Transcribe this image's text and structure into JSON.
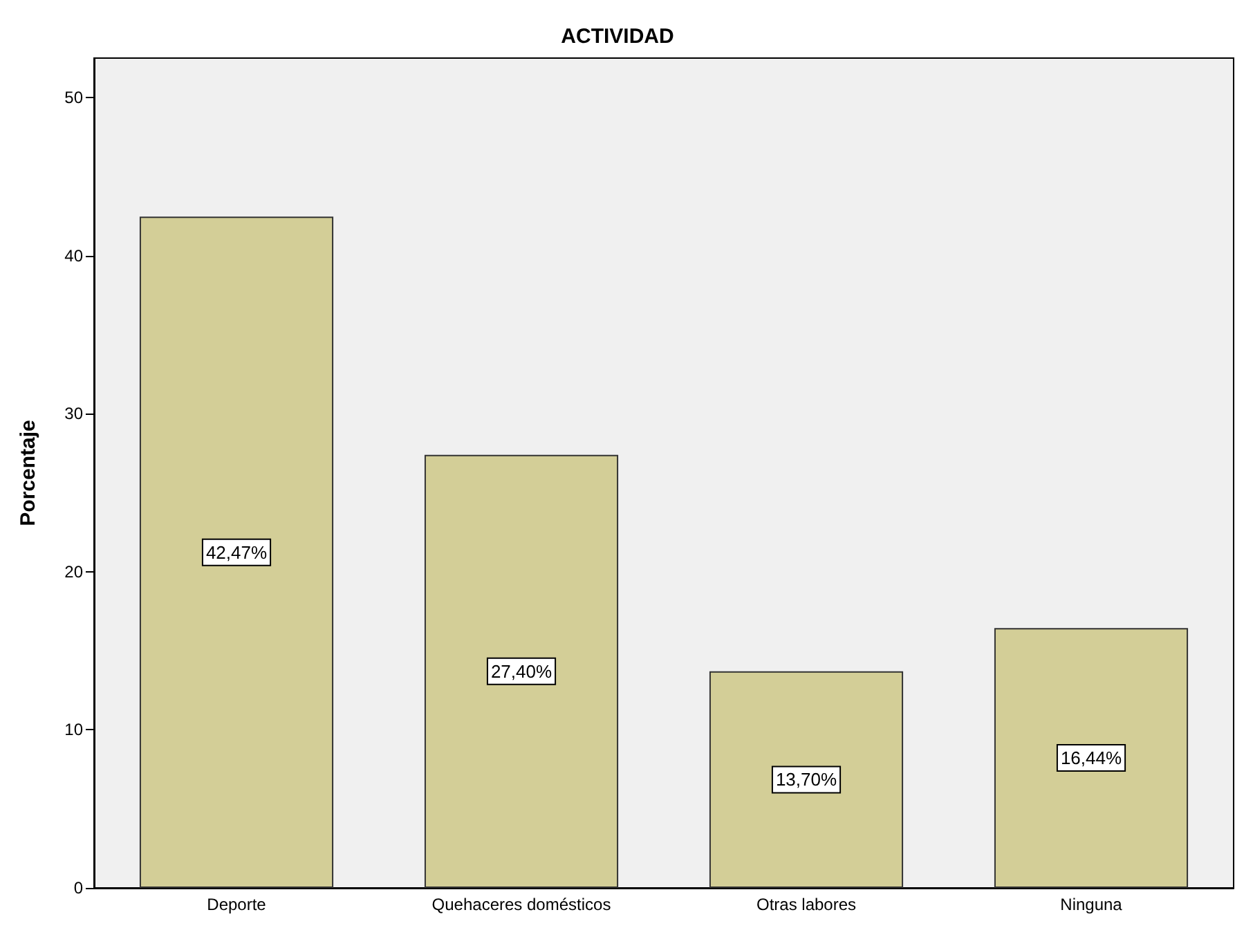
{
  "chart_data": {
    "type": "bar",
    "title": "ACTIVIDAD",
    "ylabel": "Porcentaje",
    "categories": [
      "Deporte",
      "Quehaceres domésticos",
      "Otras labores",
      "Ninguna"
    ],
    "values": [
      42.47,
      27.4,
      13.7,
      16.44
    ],
    "value_labels": [
      "42,47%",
      "27,40%",
      "13,70%",
      "16,44%"
    ],
    "color": "#d3ce97",
    "ylim": [
      0,
      52.5
    ],
    "yticks": [
      0,
      10,
      20,
      30,
      40,
      50
    ],
    "grid": false
  }
}
